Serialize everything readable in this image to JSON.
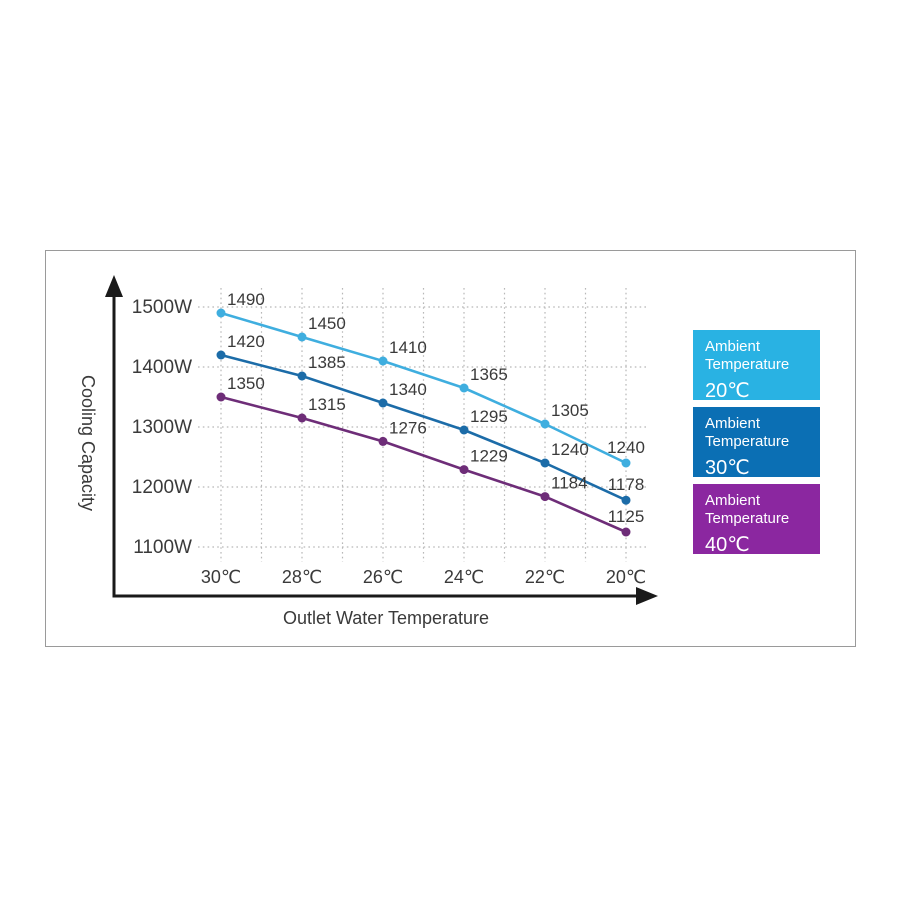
{
  "colors": {
    "panel_border": "#9a9a9a",
    "axis": "#1a1a1a",
    "gridline": "#b8b8b8",
    "label_text": "#3a3a3a",
    "legend_text": "#ffffff"
  },
  "chart_data": {
    "type": "line",
    "title": "",
    "xlabel": "Outlet Water Temperature",
    "ylabel": "Cooling Capacity",
    "x_tick_labels": [
      "30℃",
      "28℃",
      "26℃",
      "24℃",
      "22℃",
      "20℃"
    ],
    "y_tick_labels": [
      "1500W",
      "1400W",
      "1300W",
      "1200W",
      "1100W"
    ],
    "y_tick_values": [
      1500,
      1400,
      1300,
      1200,
      1100
    ],
    "ylim": [
      1100,
      1500
    ],
    "grid": true,
    "legend_position": "right",
    "series": [
      {
        "name": "Ambient Temperature 20℃",
        "legend_label_lines": [
          "Ambient",
          "Temperature"
        ],
        "legend_temp": "20℃",
        "line_color": "#3FAEDF",
        "legend_color": "#29B2E3",
        "values": [
          1490,
          1450,
          1410,
          1365,
          1305,
          1240
        ]
      },
      {
        "name": "Ambient Temperature 30℃",
        "legend_label_lines": [
          "Ambient",
          "Temperature"
        ],
        "legend_temp": "30℃",
        "line_color": "#1C6CA8",
        "legend_color": "#0B6FB4",
        "values": [
          1420,
          1385,
          1340,
          1295,
          1240,
          1178
        ]
      },
      {
        "name": "Ambient Temperature 40℃",
        "legend_label_lines": [
          "Ambient",
          "Temperature"
        ],
        "legend_temp": "40℃",
        "line_color": "#6E2D78",
        "legend_color": "#8B27A0",
        "values": [
          1350,
          1315,
          1276,
          1229,
          1184,
          1125
        ]
      }
    ]
  }
}
